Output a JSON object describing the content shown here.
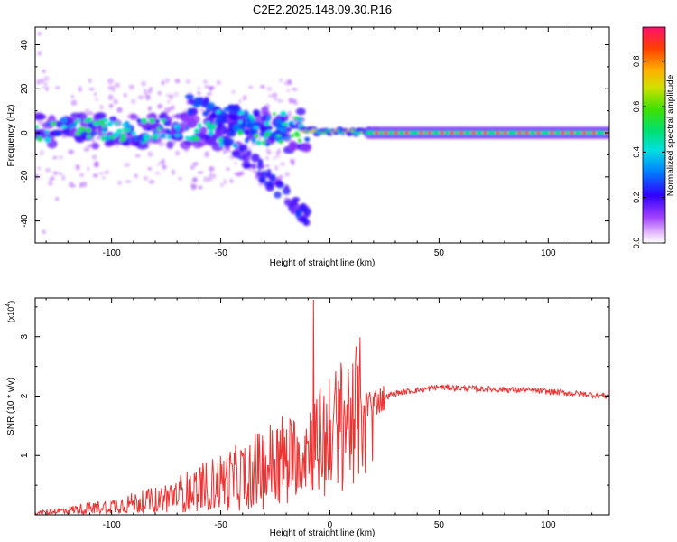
{
  "title": "C2E2.2025.148.09.30.R16",
  "chart_data": [
    {
      "type": "heatmap",
      "xlabel": "Height of straight line (km)",
      "ylabel": "Frequency (Hz)",
      "xlim": [
        -135,
        128
      ],
      "ylim": [
        -50,
        48
      ],
      "xticks": [
        -100,
        -50,
        0,
        50,
        100
      ],
      "xtick_labels": [
        "-100",
        "-50",
        "",
        "50",
        "100"
      ],
      "yticks": [
        -40,
        -20,
        0,
        20,
        40
      ],
      "ytick_labels": [
        "-40",
        "-20",
        "0",
        "20",
        "40"
      ],
      "grid": false,
      "colorbar": {
        "label": "Normalized spectral amplitude",
        "range": [
          0,
          0.95
        ],
        "ticks": [
          0.0,
          0.2,
          0.4,
          0.6,
          0.8
        ],
        "tick_labels": [
          "0.0",
          "0.2",
          "0.4",
          "0.6",
          "0.8"
        ]
      },
      "features": {
        "main_band_freq_hz": 0,
        "main_band_x_range": [
          -135,
          128
        ],
        "strong_ridge_x_range": [
          20,
          128
        ],
        "descending_branch": {
          "x": [
            -55,
            -10
          ],
          "freq": [
            5,
            -38
          ]
        }
      }
    },
    {
      "type": "line",
      "xlabel": "Height of straight line (km)",
      "ylabel": "SNR (10 * v/v)",
      "y_multiplier": "(x10",
      "y_multiplier_exp": "4",
      "y_multiplier_close": ")",
      "xlim": [
        -135,
        128
      ],
      "ylim": [
        0,
        3.65
      ],
      "xticks": [
        -100,
        -50,
        0,
        50,
        100
      ],
      "xtick_labels": [
        "-100",
        "-50",
        "0",
        "50",
        "100"
      ],
      "yticks": [
        1,
        2,
        3
      ],
      "ytick_labels": [
        "1",
        "2",
        "3"
      ],
      "grid": false,
      "series": [
        {
          "color": "#ee3333",
          "x": [
            -135,
            -120,
            -100,
            -80,
            -60,
            -40,
            -20,
            -10,
            0,
            10,
            20,
            30,
            50,
            70,
            90,
            110,
            128
          ],
          "y": [
            0.03,
            0.08,
            0.15,
            0.25,
            0.45,
            0.65,
            0.95,
            1.15,
            1.4,
            1.7,
            1.9,
            2.05,
            2.15,
            2.12,
            2.1,
            2.05,
            2.0
          ],
          "spikes": [
            {
              "x": -7.5,
              "y": 3.62
            },
            {
              "x": 10.5,
              "y": 2.55
            },
            {
              "x": 4,
              "y": 2.25
            }
          ]
        }
      ]
    }
  ]
}
